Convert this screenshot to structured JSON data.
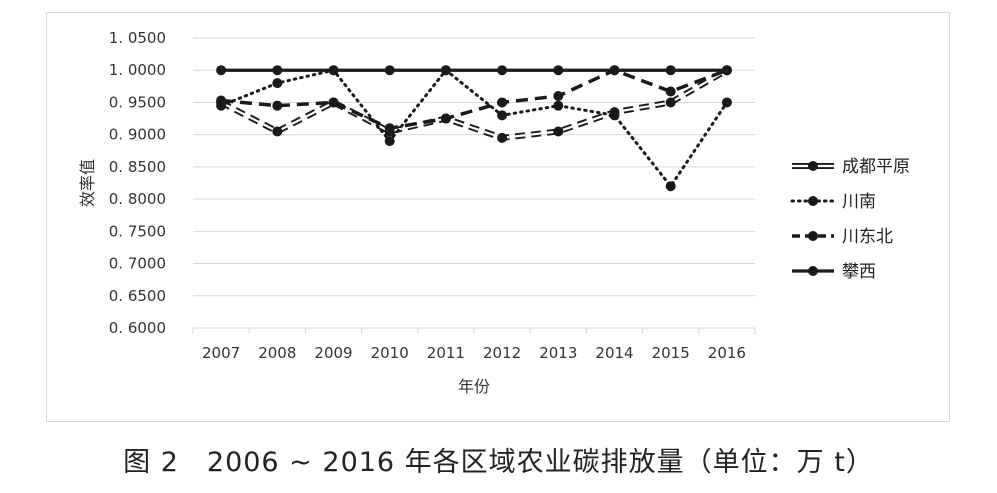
{
  "chart_data": {
    "type": "line",
    "title": "",
    "xlabel": "年份",
    "ylabel": "效率值",
    "categories": [
      "2007",
      "2008",
      "2009",
      "2010",
      "2011",
      "2012",
      "2013",
      "2014",
      "2015",
      "2016"
    ],
    "ylim": [
      0.6,
      1.05
    ],
    "yticks": [
      1.05,
      1.0,
      0.95,
      0.9,
      0.85,
      0.8,
      0.75,
      0.7,
      0.65,
      0.6
    ],
    "ytick_labels": [
      "1. 0500",
      "1. 0000",
      "0. 9500",
      "0. 9000",
      "0. 8500",
      "0. 8000",
      "0. 7500",
      "0. 7000",
      "0. 6500",
      "0. 6000"
    ],
    "grid": true,
    "legend_position": "right",
    "series": [
      {
        "name": "成都平原",
        "style": "hollow-dash",
        "values": [
          0.95,
          0.905,
          0.95,
          0.905,
          0.925,
          0.895,
          0.905,
          0.935,
          0.95,
          1.0
        ]
      },
      {
        "name": "川南",
        "style": "dotted",
        "values": [
          0.945,
          0.98,
          1.0,
          0.89,
          1.0,
          0.93,
          0.945,
          0.93,
          0.82,
          0.95
        ]
      },
      {
        "name": "川东北",
        "style": "dashed",
        "values": [
          0.953,
          0.945,
          0.95,
          0.91,
          0.925,
          0.95,
          0.96,
          1.0,
          0.967,
          1.0
        ]
      },
      {
        "name": "攀西",
        "style": "solid",
        "values": [
          1.0,
          1.0,
          1.0,
          1.0,
          1.0,
          1.0,
          1.0,
          1.0,
          1.0,
          1.0
        ]
      }
    ]
  },
  "figure_caption": "图 2　2006 ~ 2016 年各区域农业碳排放量（单位：万 t）",
  "colors": {
    "line": "#1a1a1a",
    "grid": "#d9d9d9",
    "frame": "#d9d9d9"
  }
}
